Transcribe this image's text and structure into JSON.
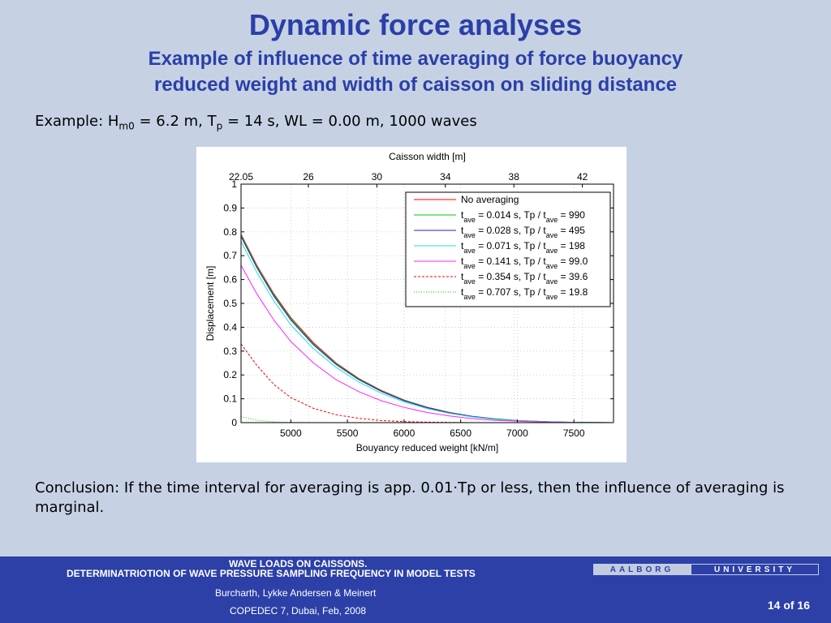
{
  "slide": {
    "title": "Dynamic force analyses",
    "subtitle_line1": "Example of influence of time averaging of force buoyancy",
    "subtitle_line2": "reduced weight and width of caisson on sliding distance",
    "example_prefix": "Example: H",
    "example_sub1": "m0",
    "example_mid": " = 6.2 m, T",
    "example_sub2": "p",
    "example_suffix": " = 14 s, WL = 0.00 m, 1000 waves",
    "conclusion": "Conclusion: If the time interval for averaging is app. 0.01·Tp or less, then the influence of averaging is marginal."
  },
  "footer": {
    "line1": "WAVE LOADS ON CAISSONS.",
    "line2": "DETERMINATRIOTION OF WAVE PRESSURE SAMPLING FREQUENCY IN MODEL TESTS",
    "authors": "Burcharth, Lykke Andersen & Meinert",
    "conference": "COPEDEC 7, Dubai, Feb, 2008",
    "page": "14 of 16",
    "logo_part1": "AALBORG",
    "logo_part2": "UNIVERSITY"
  },
  "colors": {
    "title": "#2b3fa8",
    "footer_bg": "#2c40a8",
    "slide_bg": "#c6d2e4"
  },
  "chart_data": {
    "type": "line",
    "xlabel": "Bouyancy reduced weight [kN/m]",
    "ylabel": "Displacement [m]",
    "top_xlabel": "Caisson width [m]",
    "xlim": [
      4560,
      7850
    ],
    "ylim": [
      0,
      1
    ],
    "xticks": [
      5000,
      5500,
      6000,
      6500,
      7000,
      7500
    ],
    "yticks": [
      0,
      0.1,
      0.2,
      0.3,
      0.4,
      0.5,
      0.6,
      0.7,
      0.8,
      0.9,
      1
    ],
    "top_ticks": [
      {
        "label": "22.05",
        "x": 4560
      },
      {
        "label": "26",
        "x": 5155
      },
      {
        "label": "30",
        "x": 5760
      },
      {
        "label": "34",
        "x": 6365
      },
      {
        "label": "38",
        "x": 6970
      },
      {
        "label": "42",
        "x": 7575
      }
    ],
    "grid": true,
    "legend_position": "top-right",
    "series": [
      {
        "color": "#ff0000",
        "dash": "solid",
        "legend": {
          "plain": "No averaging"
        },
        "x": [
          4560,
          4700,
          4850,
          5000,
          5200,
          5400,
          5600,
          5800,
          6000,
          6200,
          6400,
          6600,
          6800,
          7000,
          7200,
          7400,
          7600,
          7850
        ],
        "y": [
          0.79,
          0.66,
          0.54,
          0.44,
          0.335,
          0.25,
          0.185,
          0.135,
          0.095,
          0.065,
          0.043,
          0.027,
          0.016,
          0.009,
          0.005,
          0.002,
          0.001,
          0
        ]
      },
      {
        "color": "#00cc00",
        "dash": "solid",
        "legend": {
          "a": "t",
          "b": "ave",
          "c": " = 0.014 s, Tp / t",
          "d": "ave",
          "e": " = 990"
        },
        "x": [
          4560,
          4700,
          4850,
          5000,
          5200,
          5400,
          5600,
          5800,
          6000,
          6200,
          6400,
          6600,
          6800,
          7000,
          7200,
          7400,
          7600,
          7850
        ],
        "y": [
          0.785,
          0.655,
          0.535,
          0.435,
          0.33,
          0.247,
          0.183,
          0.133,
          0.094,
          0.064,
          0.042,
          0.026,
          0.016,
          0.009,
          0.005,
          0.002,
          0.001,
          0
        ]
      },
      {
        "color": "#2222cc",
        "dash": "solid",
        "legend": {
          "a": "t",
          "b": "ave",
          "c": " = 0.028 s, Tp / t",
          "d": "ave",
          "e": " = 495"
        },
        "x": [
          4560,
          4700,
          4850,
          5000,
          5200,
          5400,
          5600,
          5800,
          6000,
          6200,
          6400,
          6600,
          6800,
          7000,
          7200,
          7400,
          7600,
          7850
        ],
        "y": [
          0.78,
          0.65,
          0.53,
          0.43,
          0.326,
          0.244,
          0.18,
          0.131,
          0.092,
          0.063,
          0.041,
          0.026,
          0.015,
          0.008,
          0.004,
          0.002,
          0.001,
          0
        ]
      },
      {
        "color": "#22dddd",
        "dash": "solid",
        "legend": {
          "a": "t",
          "b": "ave",
          "c": " = 0.071 s, Tp / t",
          "d": "ave",
          "e": " = 198"
        },
        "x": [
          4560,
          4700,
          4850,
          5000,
          5200,
          5400,
          5600,
          5800,
          6000,
          6200,
          6400,
          6600,
          6800,
          7000,
          7200,
          7400,
          7600,
          7850
        ],
        "y": [
          0.76,
          0.63,
          0.51,
          0.41,
          0.31,
          0.232,
          0.17,
          0.123,
          0.087,
          0.059,
          0.039,
          0.024,
          0.014,
          0.008,
          0.004,
          0.002,
          0.001,
          0
        ]
      },
      {
        "color": "#ff22ff",
        "dash": "solid",
        "legend": {
          "a": "t",
          "b": "ave",
          "c": " = 0.141 s, Tp / t",
          "d": "ave",
          "e": " = 99.0"
        },
        "x": [
          4560,
          4700,
          4850,
          5000,
          5200,
          5400,
          5600,
          5800,
          6000,
          6200,
          6400,
          6600,
          6800,
          7000,
          7200,
          7400,
          7600,
          7850
        ],
        "y": [
          0.66,
          0.54,
          0.43,
          0.34,
          0.25,
          0.18,
          0.13,
          0.092,
          0.064,
          0.043,
          0.028,
          0.017,
          0.01,
          0.006,
          0.003,
          0.001,
          0,
          0
        ]
      },
      {
        "color": "#ff0000",
        "dash": "dashed",
        "legend": {
          "a": "t",
          "b": "ave",
          "c": " = 0.354 s, Tp / t",
          "d": "ave",
          "e": " = 39.6"
        },
        "x": [
          4560,
          4700,
          4850,
          5000,
          5200,
          5400,
          5600,
          5800,
          6000,
          6200,
          6400,
          6600,
          6800,
          7000,
          7200,
          7400,
          7600,
          7850
        ],
        "y": [
          0.33,
          0.24,
          0.16,
          0.105,
          0.06,
          0.033,
          0.018,
          0.009,
          0.004,
          0.002,
          0.001,
          0,
          0,
          0,
          0,
          0,
          0,
          0
        ]
      },
      {
        "color": "#00cc00",
        "dash": "dotted",
        "legend": {
          "a": "t",
          "b": "ave",
          "c": " = 0.707 s, Tp / t",
          "d": "ave",
          "e": " = 19.8"
        },
        "x": [
          4560,
          4700,
          4850,
          5000,
          5200,
          5400,
          5600,
          5800,
          6000,
          6200,
          6400,
          6600,
          6800,
          7000,
          7200,
          7400,
          7600,
          7850
        ],
        "y": [
          0.025,
          0.01,
          0.003,
          0.001,
          0,
          0,
          0,
          0,
          0,
          0,
          0,
          0,
          0,
          0,
          0,
          0,
          0,
          0
        ]
      }
    ]
  }
}
